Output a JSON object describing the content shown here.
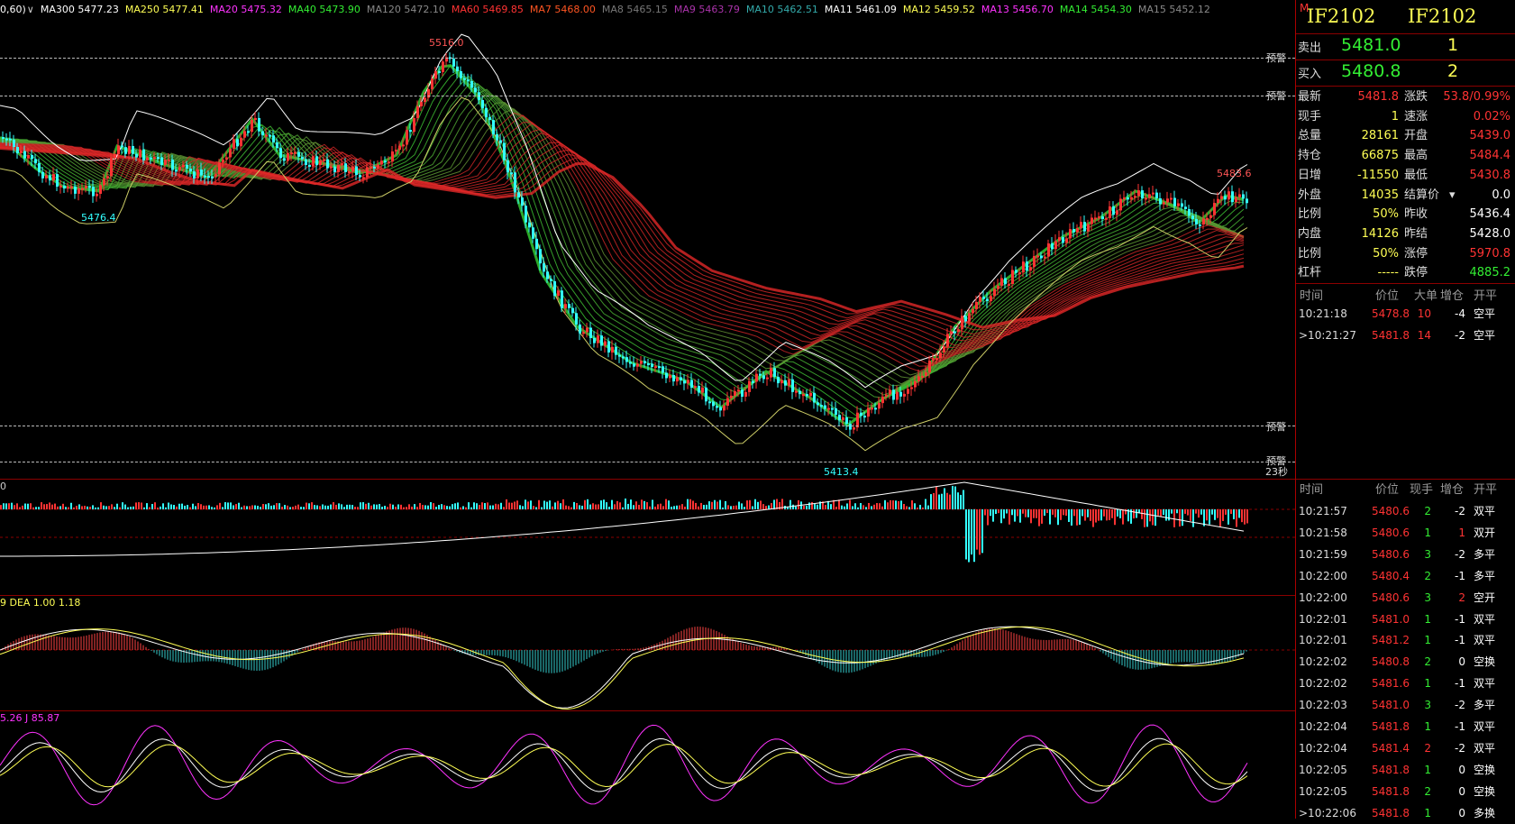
{
  "ma_legend": [
    {
      "text": "0,60)",
      "color": "#ffffff"
    },
    {
      "text": "MA300 5477.23",
      "color": "#ffffff"
    },
    {
      "text": "MA250 5477.41",
      "color": "#ffff55"
    },
    {
      "text": "MA20 5475.32",
      "color": "#ff33ff"
    },
    {
      "text": "MA40 5473.90",
      "color": "#33ee33"
    },
    {
      "text": "MA120 5472.10",
      "color": "#888888"
    },
    {
      "text": "MA60 5469.85",
      "color": "#ff3333"
    },
    {
      "text": "MA7 5468.00",
      "color": "#ff5522"
    },
    {
      "text": "MA8 5465.15",
      "color": "#777777"
    },
    {
      "text": "MA9 5463.79",
      "color": "#aa33aa"
    },
    {
      "text": "MA10 5462.51",
      "color": "#33aaaa"
    },
    {
      "text": "MA11 5461.09",
      "color": "#ffffff"
    },
    {
      "text": "MA12 5459.52",
      "color": "#ffff55"
    },
    {
      "text": "MA13 5456.70",
      "color": "#ff33ff"
    },
    {
      "text": "MA14 5454.30",
      "color": "#33ee33"
    },
    {
      "text": "MA15 5452.12",
      "color": "#888888"
    }
  ],
  "chart_labels": {
    "high_label": "5516.0",
    "low_label_left": "5476.4",
    "low_label": "5413.4",
    "right_high": "5483.6",
    "warn": "预警",
    "timer": "23秒",
    "vol_header": "0",
    "macd_header": "9  DEA 1.00    1.18",
    "kdj_header": "5.26  J 85.87"
  },
  "quote": {
    "marker": "M",
    "symbol": "IF2102",
    "symbol2": "IF2102",
    "sell_label": "卖出",
    "sell_price": "5481.0",
    "sell_qty": "1",
    "buy_label": "买入",
    "buy_price": "5480.8",
    "buy_qty": "2"
  },
  "stats": [
    {
      "l": "最新",
      "v": "5481.8",
      "vc": "#ff3333",
      "l2": "涨跌",
      "v2": "53.8/0.99%",
      "v2c": "#ff3333"
    },
    {
      "l": "现手",
      "v": "1",
      "vc": "#ffff55",
      "l2": "速涨",
      "v2": "0.02%",
      "v2c": "#ff3333"
    },
    {
      "l": "总量",
      "v": "28161",
      "vc": "#ffff55",
      "l2": "开盘",
      "v2": "5439.0",
      "v2c": "#ff3333"
    },
    {
      "l": "持仓",
      "v": "66875",
      "vc": "#ffff55",
      "l2": "最高",
      "v2": "5484.4",
      "v2c": "#ff3333"
    },
    {
      "l": "日增",
      "v": "-11550",
      "vc": "#ffff55",
      "l2": "最低",
      "v2": "5430.8",
      "v2c": "#ff3333"
    },
    {
      "l": "外盘",
      "v": "14035",
      "vc": "#ffff55",
      "l2": "结算价",
      "v2": "0.0",
      "v2c": "#ffffff"
    },
    {
      "l": "比例",
      "v": "50%",
      "vc": "#ffff55",
      "l2": "昨收",
      "v2": "5436.4",
      "v2c": "#ffffff"
    },
    {
      "l": "内盘",
      "v": "14126",
      "vc": "#ffff55",
      "l2": "昨结",
      "v2": "5428.0",
      "v2c": "#ffffff"
    },
    {
      "l": "比例",
      "v": "50%",
      "vc": "#ffff55",
      "l2": "涨停",
      "v2": "5970.8",
      "v2c": "#ff3333"
    },
    {
      "l": "杠杆",
      "v": "-----",
      "vc": "#ffff55",
      "l2": "跌停",
      "v2": "4885.2",
      "v2c": "#33ee33"
    }
  ],
  "big_header": {
    "c1": "时间",
    "c2": "价位",
    "c3": "大单",
    "c4": "增仓",
    "c5": "开平"
  },
  "big_orders": [
    {
      "t": "10:21:18",
      "p": "5478.8",
      "q": "10",
      "d": "-4",
      "k": "空平",
      "prefix": ""
    },
    {
      "t": "10:21:27",
      "p": "5481.8",
      "q": "14",
      "d": "-2",
      "k": "空平",
      "prefix": ">"
    }
  ],
  "tick_header": {
    "c1": "时间",
    "c2": "价位",
    "c3": "现手",
    "c4": "增仓",
    "c5": "开平"
  },
  "ticks": [
    {
      "t": "10:21:57",
      "p": "5480.6",
      "q": "2",
      "d": "-2",
      "k": "双平",
      "prefix": ""
    },
    {
      "t": "10:21:58",
      "p": "5480.6",
      "q": "1",
      "d": "1",
      "k": "双开",
      "prefix": ""
    },
    {
      "t": "10:21:59",
      "p": "5480.6",
      "q": "3",
      "d": "-2",
      "k": "多平",
      "prefix": ""
    },
    {
      "t": "10:22:00",
      "p": "5480.4",
      "q": "2",
      "d": "-1",
      "k": "多平",
      "prefix": ""
    },
    {
      "t": "10:22:00",
      "p": "5480.6",
      "q": "3",
      "d": "2",
      "k": "空开",
      "prefix": ""
    },
    {
      "t": "10:22:01",
      "p": "5481.0",
      "q": "1",
      "d": "-1",
      "k": "双平",
      "prefix": ""
    },
    {
      "t": "10:22:01",
      "p": "5481.2",
      "q": "1",
      "d": "-1",
      "k": "双平",
      "prefix": ""
    },
    {
      "t": "10:22:02",
      "p": "5480.8",
      "q": "2",
      "d": "0",
      "k": "空换",
      "prefix": ""
    },
    {
      "t": "10:22:02",
      "p": "5481.6",
      "q": "1",
      "d": "-1",
      "k": "双平",
      "prefix": ""
    },
    {
      "t": "10:22:03",
      "p": "5481.0",
      "q": "3",
      "d": "-2",
      "k": "多平",
      "prefix": ""
    },
    {
      "t": "10:22:04",
      "p": "5481.8",
      "q": "1",
      "d": "-1",
      "k": "双平",
      "prefix": ""
    },
    {
      "t": "10:22:04",
      "p": "5481.4",
      "q": "2",
      "d": "-2",
      "k": "双平",
      "prefix": ""
    },
    {
      "t": "10:22:05",
      "p": "5481.8",
      "q": "1",
      "d": "0",
      "k": "空换",
      "prefix": ""
    },
    {
      "t": "10:22:05",
      "p": "5481.8",
      "q": "2",
      "d": "0",
      "k": "空换",
      "prefix": ""
    },
    {
      "t": "10:22:06",
      "p": "5481.8",
      "q": "1",
      "d": "0",
      "k": "多换",
      "prefix": ">"
    }
  ],
  "colors": {
    "up": "#ff3333",
    "down": "#33ffff",
    "grid": "#8b0000",
    "bg": "#000000"
  }
}
